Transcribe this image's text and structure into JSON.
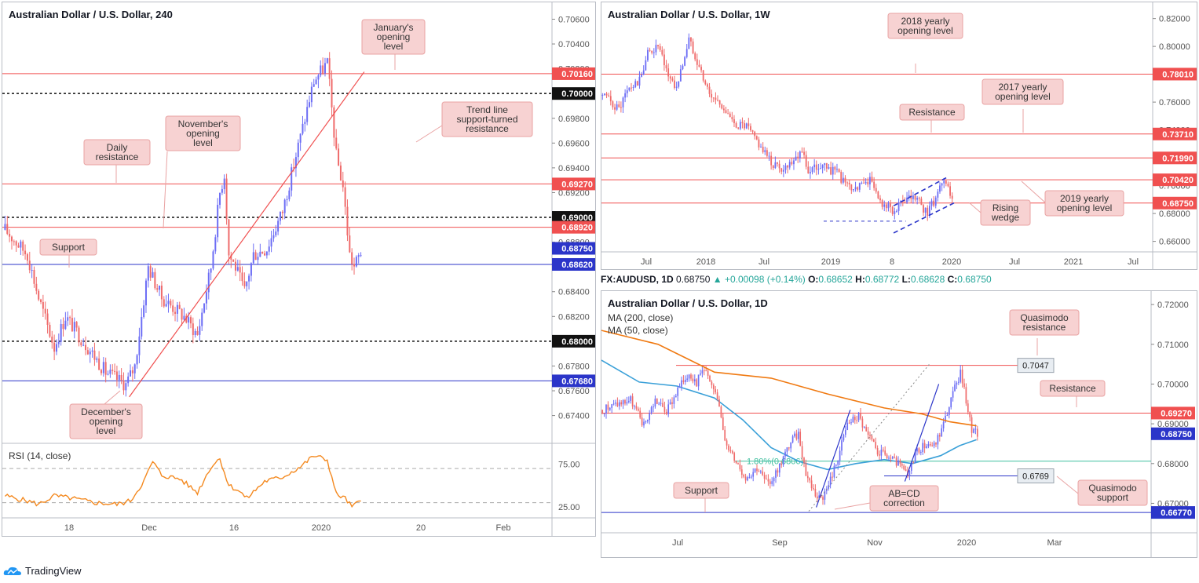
{
  "colors": {
    "bull": "#6c6df5",
    "bear": "#ef6b6b",
    "resistance": "#f05050",
    "support": "#2b35c9",
    "annotation_fill": "#f7d2d2",
    "annotation_border": "#e9a3a3",
    "rsi": "#f4891f",
    "ma200": "#f07a12",
    "ma50": "#3aa0d8",
    "fib": "#3fbf9f"
  },
  "footer": {
    "brand": "TradingView",
    "logo_icon": "tradingview-cloud-icon"
  },
  "info_line": {
    "symbol": "FX:AUDUSD, 1D",
    "last": "0.68750",
    "change": "+0.00098 (+0.14%)",
    "o_label": "O:",
    "o": "0.68652",
    "h_label": "H:",
    "h": "0.68772",
    "l_label": "L:",
    "l": "0.68628",
    "c_label": "C:",
    "c": "0.68750"
  },
  "chart_data": [
    {
      "type": "candlestick",
      "title": "Australian Dollar / U.S. Dollar, 240",
      "ylim": [
        0.6722,
        0.7066
      ],
      "y_ticks": [
        "0.70600",
        "0.70400",
        "0.70200",
        "0.70000",
        "0.69800",
        "0.69600",
        "0.69400",
        "0.69200",
        "0.69000",
        "0.68800",
        "0.68600",
        "0.68400",
        "0.68200",
        "0.68000",
        "0.67800",
        "0.67600",
        "0.67400"
      ],
      "x_ticks": [
        "18",
        "Dec",
        "16",
        "2020",
        "20",
        "Feb"
      ],
      "anchors": [
        [
          0,
          0.689
        ],
        [
          10,
          0.687
        ],
        [
          15,
          0.6835
        ],
        [
          22,
          0.6795
        ],
        [
          27,
          0.682
        ],
        [
          35,
          0.68
        ],
        [
          45,
          0.6775
        ],
        [
          54,
          0.6765
        ],
        [
          58,
          0.678
        ],
        [
          64,
          0.686
        ],
        [
          70,
          0.6835
        ],
        [
          80,
          0.682
        ],
        [
          86,
          0.6805
        ],
        [
          92,
          0.686
        ],
        [
          96,
          0.692
        ],
        [
          98,
          0.6935
        ],
        [
          100,
          0.687
        ],
        [
          103,
          0.686
        ],
        [
          107,
          0.684
        ],
        [
          111,
          0.687
        ],
        [
          117,
          0.6875
        ],
        [
          124,
          0.6905
        ],
        [
          132,
          0.6965
        ],
        [
          138,
          0.701
        ],
        [
          144,
          0.7025
        ],
        [
          148,
          0.695
        ],
        [
          151,
          0.6925
        ],
        [
          154,
          0.687
        ],
        [
          156,
          0.686
        ],
        [
          159,
          0.6872
        ]
      ],
      "candle_count": 160,
      "x_span": 235,
      "levels": [
        {
          "value": 0.7016,
          "label": "0.70160",
          "kind": "resistance"
        },
        {
          "value": 0.7,
          "label": "0.70000",
          "kind": "round"
        },
        {
          "value": 0.6927,
          "label": "0.69270",
          "kind": "resistance"
        },
        {
          "value": 0.69,
          "label": "0.69000",
          "kind": "round"
        },
        {
          "value": 0.6892,
          "label": "0.68920",
          "kind": "resistance"
        },
        {
          "value": 0.6862,
          "label": "0.68620",
          "kind": "support"
        },
        {
          "value": 0.68,
          "label": "0.68000",
          "kind": "round"
        },
        {
          "value": 0.6768,
          "label": "0.67680",
          "kind": "support"
        }
      ],
      "current_price": {
        "value": 0.6875,
        "label": "0.68750"
      },
      "annotations": [
        {
          "text": "January's opening level"
        },
        {
          "text": "November's opening level"
        },
        {
          "text": "Daily resistance"
        },
        {
          "text": "Trend line support-turned resistance"
        },
        {
          "text": "Support"
        },
        {
          "text": "December's opening level"
        }
      ],
      "trendline": [
        [
          56,
          0.6755
        ],
        [
          140,
          0.6965
        ]
      ],
      "rsi": {
        "title": "RSI (14, close)",
        "ylim": [
          14,
          94
        ],
        "y_ticks": [
          "75.00",
          "25.00"
        ],
        "levels": [
          70,
          30
        ],
        "anchors": [
          [
            0,
            38
          ],
          [
            10,
            32
          ],
          [
            15,
            28
          ],
          [
            22,
            38
          ],
          [
            30,
            35
          ],
          [
            40,
            30
          ],
          [
            50,
            28
          ],
          [
            56,
            32
          ],
          [
            62,
            55
          ],
          [
            66,
            78
          ],
          [
            70,
            62
          ],
          [
            78,
            58
          ],
          [
            86,
            42
          ],
          [
            92,
            72
          ],
          [
            96,
            82
          ],
          [
            100,
            50
          ],
          [
            104,
            45
          ],
          [
            108,
            35
          ],
          [
            116,
            55
          ],
          [
            124,
            60
          ],
          [
            132,
            72
          ],
          [
            138,
            85
          ],
          [
            144,
            80
          ],
          [
            148,
            40
          ],
          [
            152,
            35
          ],
          [
            155,
            25
          ],
          [
            159,
            32
          ]
        ]
      }
    },
    {
      "type": "candlestick",
      "title": "Australian Dollar / U.S. Dollar, 1W",
      "ylim": [
        0.6485,
        0.826
      ],
      "y_ticks": [
        "0.82000",
        "0.80000",
        "0.78000",
        "0.76000",
        "0.74000",
        "0.72000",
        "0.70000",
        "0.68000",
        "0.66000"
      ],
      "x_ticks": [
        "Jul",
        "2018",
        "Jul",
        "2019",
        "8",
        "2020",
        "Jul",
        "2021",
        "Jul"
      ],
      "anchors": [
        [
          0,
          0.765
        ],
        [
          8,
          0.755
        ],
        [
          12,
          0.768
        ],
        [
          18,
          0.775
        ],
        [
          22,
          0.795
        ],
        [
          27,
          0.8
        ],
        [
          31,
          0.782
        ],
        [
          36,
          0.77
        ],
        [
          42,
          0.805
        ],
        [
          46,
          0.79
        ],
        [
          52,
          0.765
        ],
        [
          58,
          0.758
        ],
        [
          63,
          0.745
        ],
        [
          70,
          0.742
        ],
        [
          76,
          0.73
        ],
        [
          82,
          0.716
        ],
        [
          88,
          0.712
        ],
        [
          93,
          0.72
        ],
        [
          97,
          0.726
        ],
        [
          100,
          0.71
        ],
        [
          106,
          0.715
        ],
        [
          110,
          0.712
        ],
        [
          114,
          0.709
        ],
        [
          120,
          0.698
        ],
        [
          126,
          0.7
        ],
        [
          130,
          0.705
        ],
        [
          134,
          0.69
        ],
        [
          138,
          0.685
        ],
        [
          142,
          0.682
        ],
        [
          148,
          0.69
        ],
        [
          153,
          0.69
        ],
        [
          158,
          0.68
        ],
        [
          163,
          0.695
        ],
        [
          167,
          0.702
        ],
        [
          170,
          0.69
        ]
      ],
      "candle_count": 171,
      "x_span": 250,
      "levels": [
        {
          "value": 0.7801,
          "label": "0.78010",
          "kind": "resistance"
        },
        {
          "value": 0.7371,
          "label": "0.73710",
          "kind": "resistance"
        },
        {
          "value": 0.7199,
          "label": "0.71990",
          "kind": "resistance"
        },
        {
          "value": 0.7042,
          "label": "0.70420",
          "kind": "resistance"
        },
        {
          "value": 0.6875,
          "label": "0.68750",
          "kind": "resistance"
        }
      ],
      "annotations": [
        {
          "text": "2018 yearly opening level"
        },
        {
          "text": "2017 yearly opening level"
        },
        {
          "text": "Resistance"
        },
        {
          "text": "2019 yearly opening level"
        },
        {
          "text": "Rising wedge"
        }
      ]
    },
    {
      "type": "candlestick",
      "title": "Australian Dollar / U.S. Dollar, 1D",
      "ylim": [
        0.6618,
        0.7218
      ],
      "y_ticks": [
        "0.72000",
        "0.71000",
        "0.70000",
        "0.69000",
        "0.68000",
        "0.67000"
      ],
      "x_ticks": [
        "Jul",
        "Sep",
        "Nov",
        "2020",
        "Mar"
      ],
      "anchors": [
        [
          0,
          0.6935
        ],
        [
          8,
          0.695
        ],
        [
          15,
          0.696
        ],
        [
          22,
          0.6895
        ],
        [
          28,
          0.696
        ],
        [
          34,
          0.693
        ],
        [
          40,
          0.6985
        ],
        [
          46,
          0.703
        ],
        [
          50,
          0.7005
        ],
        [
          54,
          0.7045
        ],
        [
          58,
          0.699
        ],
        [
          62,
          0.695
        ],
        [
          66,
          0.684
        ],
        [
          70,
          0.6815
        ],
        [
          76,
          0.6765
        ],
        [
          82,
          0.679
        ],
        [
          88,
          0.6745
        ],
        [
          94,
          0.6795
        ],
        [
          100,
          0.6855
        ],
        [
          104,
          0.6875
        ],
        [
          108,
          0.6775
        ],
        [
          114,
          0.6715
        ],
        [
          118,
          0.672
        ],
        [
          124,
          0.68
        ],
        [
          130,
          0.69
        ],
        [
          136,
          0.692
        ],
        [
          140,
          0.6875
        ],
        [
          146,
          0.683
        ],
        [
          152,
          0.6815
        ],
        [
          158,
          0.6795
        ],
        [
          162,
          0.6765
        ],
        [
          166,
          0.683
        ],
        [
          172,
          0.685
        ],
        [
          176,
          0.6845
        ],
        [
          180,
          0.6885
        ],
        [
          186,
          0.6975
        ],
        [
          190,
          0.703
        ],
        [
          193,
          0.696
        ],
        [
          196,
          0.6885
        ],
        [
          199,
          0.6875
        ]
      ],
      "candle_count": 200,
      "x_span": 248,
      "ma200": [
        [
          0,
          0.7135
        ],
        [
          30,
          0.71
        ],
        [
          60,
          0.703
        ],
        [
          90,
          0.7015
        ],
        [
          120,
          0.6975
        ],
        [
          150,
          0.694
        ],
        [
          170,
          0.6925
        ],
        [
          185,
          0.6905
        ],
        [
          199,
          0.6895
        ]
      ],
      "ma50": [
        [
          0,
          0.706
        ],
        [
          20,
          0.7005
        ],
        [
          40,
          0.6995
        ],
        [
          60,
          0.6965
        ],
        [
          75,
          0.691
        ],
        [
          90,
          0.684
        ],
        [
          105,
          0.6805
        ],
        [
          120,
          0.6785
        ],
        [
          135,
          0.68
        ],
        [
          150,
          0.681
        ],
        [
          165,
          0.68
        ],
        [
          180,
          0.682
        ],
        [
          190,
          0.6845
        ],
        [
          199,
          0.686
        ]
      ],
      "levels": [
        {
          "value": 0.7047,
          "label": "0.7047",
          "kind": "tag"
        },
        {
          "value": 0.6927,
          "label": "0.69270",
          "kind": "resistance"
        },
        {
          "value": 0.6806,
          "label": "",
          "kind": "fib"
        },
        {
          "value": 0.6769,
          "label": "0.6769",
          "kind": "tag"
        },
        {
          "value": 0.6677,
          "label": "0.66770",
          "kind": "support"
        }
      ],
      "fib_label": "1.80%(0.6806)",
      "current_price": {
        "value": 0.6875,
        "label": "0.68750"
      },
      "legend": [
        {
          "text": "MA (200, close)"
        },
        {
          "text": "MA (50, close)"
        }
      ],
      "annotations": [
        {
          "text": "Quasimodo resistance"
        },
        {
          "text": "Resistance"
        },
        {
          "text": "Support"
        },
        {
          "text": "AB=CD correction"
        },
        {
          "text": "Quasimodo support"
        }
      ]
    }
  ]
}
